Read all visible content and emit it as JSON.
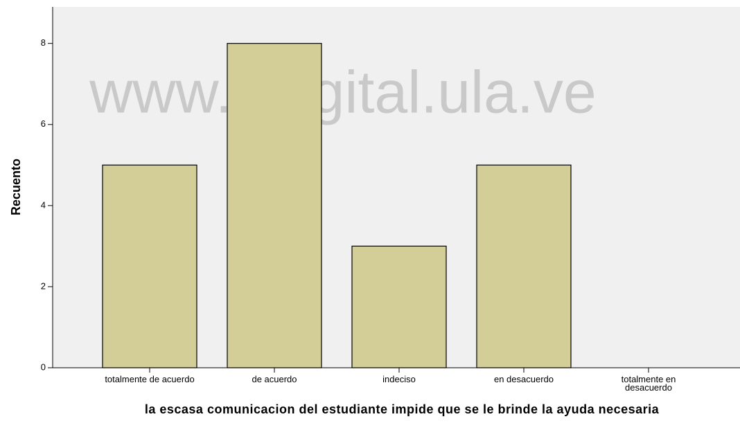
{
  "chart_data": {
    "type": "bar",
    "xlabel": "la escasa comunicacion del estudiante impide que se le brinde la ayuda necesaria",
    "ylabel": "Recuento",
    "watermark": "www.bdigital.ula.ve",
    "categories": [
      "totalmente de acuerdo",
      "de acuerdo",
      "indeciso",
      "en desacuerdo",
      "totalmente en desacuerdo"
    ],
    "values": [
      5,
      8,
      3,
      5,
      0
    ],
    "color": "#d3ce97",
    "ylim": [
      0,
      8.9
    ],
    "yticks": [
      0,
      2,
      4,
      6,
      8
    ],
    "grid": false
  }
}
